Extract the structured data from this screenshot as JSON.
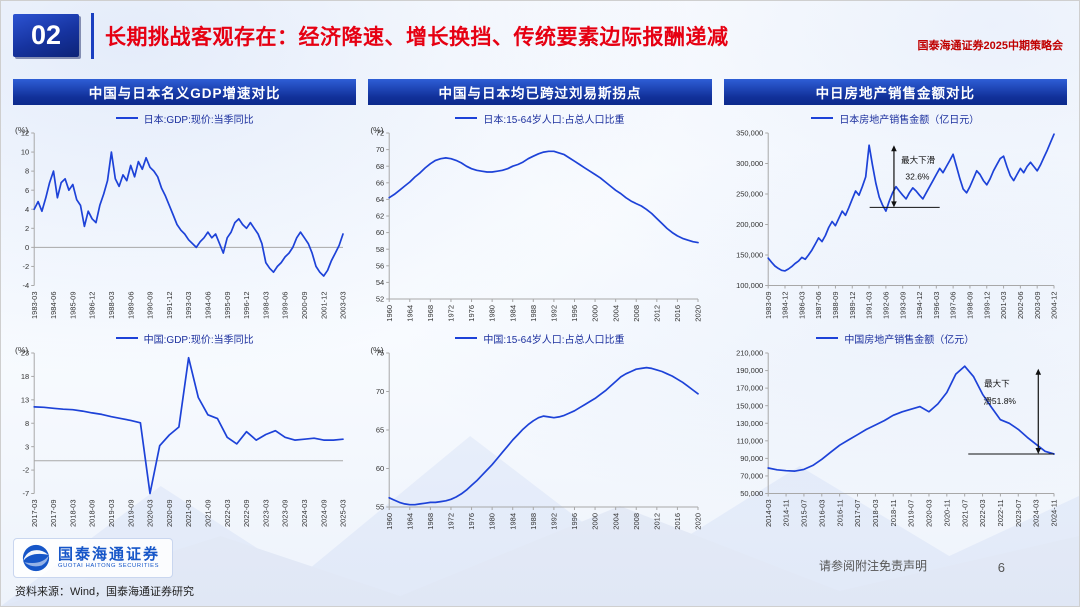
{
  "header": {
    "slide_number": "02",
    "title": "长期挑战客观存在：经济降速、增长换挡、传统要素边际报酬递减",
    "event": "国泰海通证券2025中期策略会"
  },
  "columns": [
    {
      "title": "中国与日本名义GDP增速对比"
    },
    {
      "title": "中国与日本均已跨过刘易斯拐点"
    },
    {
      "title": "中日房地产销售金额对比"
    }
  ],
  "footer": {
    "logo_cn": "国泰海通证券",
    "logo_en": "GUOTAI HAITONG SECURITIES",
    "source": "资料来源：Wind，国泰海通证券研究",
    "disclaimer": "请参阅附注免责声明",
    "page_number": "6"
  },
  "colors": {
    "line_blue": "#1d42d8",
    "banner_blue": "#113099",
    "title_red": "#e60012",
    "logo_blue": "#1656c8",
    "axis_gray": "#a8a8a8",
    "annotation_black": "#111111"
  },
  "chart_data": [
    {
      "type": "line",
      "legend": "日本:GDP:现价:当季同比",
      "unit": "(%)",
      "ylim": [
        -4,
        12
      ],
      "yticks": [
        -4,
        -2,
        0,
        2,
        4,
        6,
        8,
        10,
        12
      ],
      "x_labels": [
        "1983-03",
        "1984-06",
        "1985-09",
        "1986-12",
        "1988-03",
        "1989-06",
        "1990-09",
        "1991-12",
        "1993-03",
        "1994-06",
        "1995-09",
        "1996-12",
        "1998-03",
        "1999-06",
        "2000-09",
        "2001-12",
        "2003-03"
      ],
      "values": [
        4.0,
        4.8,
        3.8,
        5.2,
        6.8,
        8.0,
        5.2,
        6.8,
        7.2,
        6.0,
        6.6,
        5.0,
        4.4,
        2.2,
        3.8,
        3.0,
        2.6,
        4.4,
        5.6,
        7.0,
        10.0,
        7.2,
        6.4,
        7.6,
        7.0,
        8.6,
        7.4,
        9.0,
        8.2,
        9.4,
        8.4,
        8.0,
        7.4,
        6.2,
        5.4,
        4.4,
        3.4,
        2.4,
        1.8,
        1.4,
        0.8,
        0.4,
        0.0,
        0.6,
        1.0,
        1.6,
        1.0,
        1.4,
        0.4,
        -0.6,
        1.0,
        1.6,
        2.6,
        3.0,
        2.4,
        2.0,
        2.6,
        2.0,
        1.4,
        0.4,
        -1.6,
        -2.2,
        -2.6,
        -2.0,
        -1.6,
        -1.0,
        -0.6,
        0.0,
        1.0,
        1.6,
        1.0,
        0.4,
        -0.6,
        -2.0,
        -2.6,
        -3.0,
        -2.4,
        -1.4,
        -0.6,
        0.2,
        1.4
      ]
    },
    {
      "type": "line",
      "legend": "中国:GDP:现价:当季同比",
      "unit": "(%)",
      "ylim": [
        -7,
        23
      ],
      "yticks": [
        -7,
        -2,
        3,
        8,
        13,
        18,
        23
      ],
      "x_labels": [
        "2017-03",
        "2017-09",
        "2018-03",
        "2018-09",
        "2019-03",
        "2019-09",
        "2020-03",
        "2020-09",
        "2021-03",
        "2021-09",
        "2022-03",
        "2022-09",
        "2023-03",
        "2023-09",
        "2024-03",
        "2024-09",
        "2025-03"
      ],
      "values": [
        11.5,
        11.4,
        11.2,
        11.0,
        10.9,
        10.6,
        10.2,
        9.9,
        9.4,
        9.0,
        8.6,
        8.1,
        -7.0,
        3.2,
        5.5,
        7.2,
        22.0,
        13.5,
        9.8,
        9.0,
        5.0,
        3.6,
        6.2,
        4.4,
        5.6,
        6.4,
        5.0,
        4.4,
        4.6,
        4.8,
        4.4,
        4.4,
        4.6
      ]
    },
    {
      "type": "line",
      "legend": "日本:15-64岁人口:占总人口比重",
      "unit": "(%)",
      "ylim": [
        52,
        72
      ],
      "yticks": [
        52,
        54,
        56,
        58,
        60,
        62,
        64,
        66,
        68,
        70,
        72
      ],
      "x_labels": [
        "1960",
        "1964",
        "1968",
        "1972",
        "1976",
        "1980",
        "1984",
        "1988",
        "1992",
        "1996",
        "2000",
        "2004",
        "2008",
        "2012",
        "2016",
        "2020"
      ],
      "values": [
        64.2,
        64.6,
        65.1,
        65.6,
        66.1,
        66.7,
        67.2,
        67.8,
        68.3,
        68.7,
        68.9,
        69.0,
        68.9,
        68.7,
        68.4,
        68.0,
        67.7,
        67.5,
        67.4,
        67.3,
        67.3,
        67.4,
        67.5,
        67.7,
        68.0,
        68.2,
        68.5,
        68.9,
        69.2,
        69.5,
        69.7,
        69.8,
        69.8,
        69.6,
        69.4,
        69.0,
        68.6,
        68.2,
        67.8,
        67.4,
        67.0,
        66.6,
        66.1,
        65.6,
        65.1,
        64.7,
        64.2,
        63.8,
        63.5,
        63.2,
        62.8,
        62.3,
        61.7,
        61.1,
        60.5,
        60.0,
        59.6,
        59.3,
        59.1,
        58.9,
        58.8
      ]
    },
    {
      "type": "line",
      "legend": "中国:15-64岁人口:占总人口比重",
      "unit": "(%)",
      "ylim": [
        55,
        75
      ],
      "yticks": [
        55,
        60,
        65,
        70,
        75
      ],
      "x_labels": [
        "1960",
        "1964",
        "1968",
        "1972",
        "1976",
        "1980",
        "1984",
        "1988",
        "1992",
        "1996",
        "2000",
        "2004",
        "2008",
        "2012",
        "2016",
        "2020"
      ],
      "values": [
        56.2,
        55.9,
        55.6,
        55.4,
        55.3,
        55.3,
        55.4,
        55.5,
        55.6,
        55.6,
        55.7,
        55.8,
        56.0,
        56.3,
        56.7,
        57.2,
        57.8,
        58.4,
        59.1,
        59.8,
        60.5,
        61.3,
        62.1,
        62.9,
        63.7,
        64.4,
        65.1,
        65.7,
        66.2,
        66.6,
        66.8,
        66.7,
        66.6,
        66.7,
        66.9,
        67.2,
        67.5,
        67.9,
        68.3,
        68.7,
        69.1,
        69.6,
        70.1,
        70.7,
        71.3,
        71.9,
        72.3,
        72.6,
        72.9,
        73.0,
        73.1,
        73.0,
        72.8,
        72.6,
        72.3,
        72.0,
        71.6,
        71.2,
        70.7,
        70.2,
        69.7
      ]
    },
    {
      "type": "line",
      "legend": "日本房地产销售金额（亿日元）",
      "unit": "",
      "ylim": [
        100000,
        350000
      ],
      "yticks": [
        100000,
        150000,
        200000,
        250000,
        300000,
        350000
      ],
      "x_labels": [
        "1983-09",
        "1984-12",
        "1986-03",
        "1987-06",
        "1988-09",
        "1989-12",
        "1991-03",
        "1992-06",
        "1993-09",
        "1994-12",
        "1996-03",
        "1997-06",
        "1998-09",
        "1999-12",
        "2001-03",
        "2002-06",
        "2003-09",
        "2004-12"
      ],
      "values": [
        145000,
        138000,
        132000,
        128000,
        125000,
        124000,
        127000,
        131000,
        136000,
        140000,
        146000,
        143000,
        150000,
        158000,
        168000,
        178000,
        172000,
        182000,
        195000,
        205000,
        198000,
        210000,
        222000,
        215000,
        228000,
        242000,
        255000,
        248000,
        262000,
        278000,
        330000,
        298000,
        268000,
        245000,
        232000,
        222000,
        238000,
        252000,
        262000,
        255000,
        248000,
        242000,
        252000,
        260000,
        255000,
        248000,
        242000,
        252000,
        262000,
        272000,
        282000,
        292000,
        285000,
        295000,
        305000,
        315000,
        295000,
        275000,
        258000,
        252000,
        262000,
        275000,
        288000,
        282000,
        272000,
        265000,
        275000,
        288000,
        298000,
        308000,
        312000,
        295000,
        280000,
        272000,
        282000,
        292000,
        285000,
        295000,
        302000,
        295000,
        288000,
        298000,
        310000,
        322000,
        335000,
        348000
      ],
      "annotation": {
        "arrow": {
          "x": 0.44,
          "y_top": 330000,
          "y_bottom": 228000
        },
        "hline": {
          "y": 228000,
          "x1": 0.355,
          "x2": 0.6
        },
        "texts": [
          {
            "t": "最大下滑",
            "x": 0.465,
            "y": 301000,
            "anchor": "start"
          },
          {
            "t": "32.6%",
            "x": 0.48,
            "y": 274000,
            "anchor": "start"
          }
        ]
      }
    },
    {
      "type": "line",
      "legend": "中国房地产销售金额（亿元）",
      "unit": "",
      "ylim": [
        50000,
        210000
      ],
      "yticks": [
        50000,
        70000,
        90000,
        110000,
        130000,
        150000,
        170000,
        190000,
        210000
      ],
      "x_labels": [
        "2014-03",
        "2014-11",
        "2015-07",
        "2016-03",
        "2016-11",
        "2017-07",
        "2018-03",
        "2018-11",
        "2019-07",
        "2020-03",
        "2020-11",
        "2021-07",
        "2022-03",
        "2022-11",
        "2023-07",
        "2024-03",
        "2024-11"
      ],
      "values": [
        79000,
        77000,
        76000,
        75500,
        77500,
        82000,
        89000,
        97000,
        105000,
        111000,
        117000,
        123000,
        128000,
        133000,
        139000,
        143000,
        146000,
        149000,
        143000,
        152000,
        165000,
        186000,
        195000,
        183000,
        163000,
        148000,
        134000,
        130000,
        123000,
        114000,
        106000,
        98000,
        95000
      ],
      "annotation": {
        "arrow": {
          "x": 0.945,
          "y_top": 192000,
          "y_bottom": 95000
        },
        "hline": {
          "y": 95000,
          "x1": 0.7,
          "x2": 1.0
        },
        "texts": [
          {
            "t": "最大下",
            "x": 0.8,
            "y": 172000,
            "anchor": "middle"
          },
          {
            "t": "滑51.8%",
            "x": 0.81,
            "y": 152000,
            "anchor": "middle"
          }
        ]
      }
    }
  ]
}
